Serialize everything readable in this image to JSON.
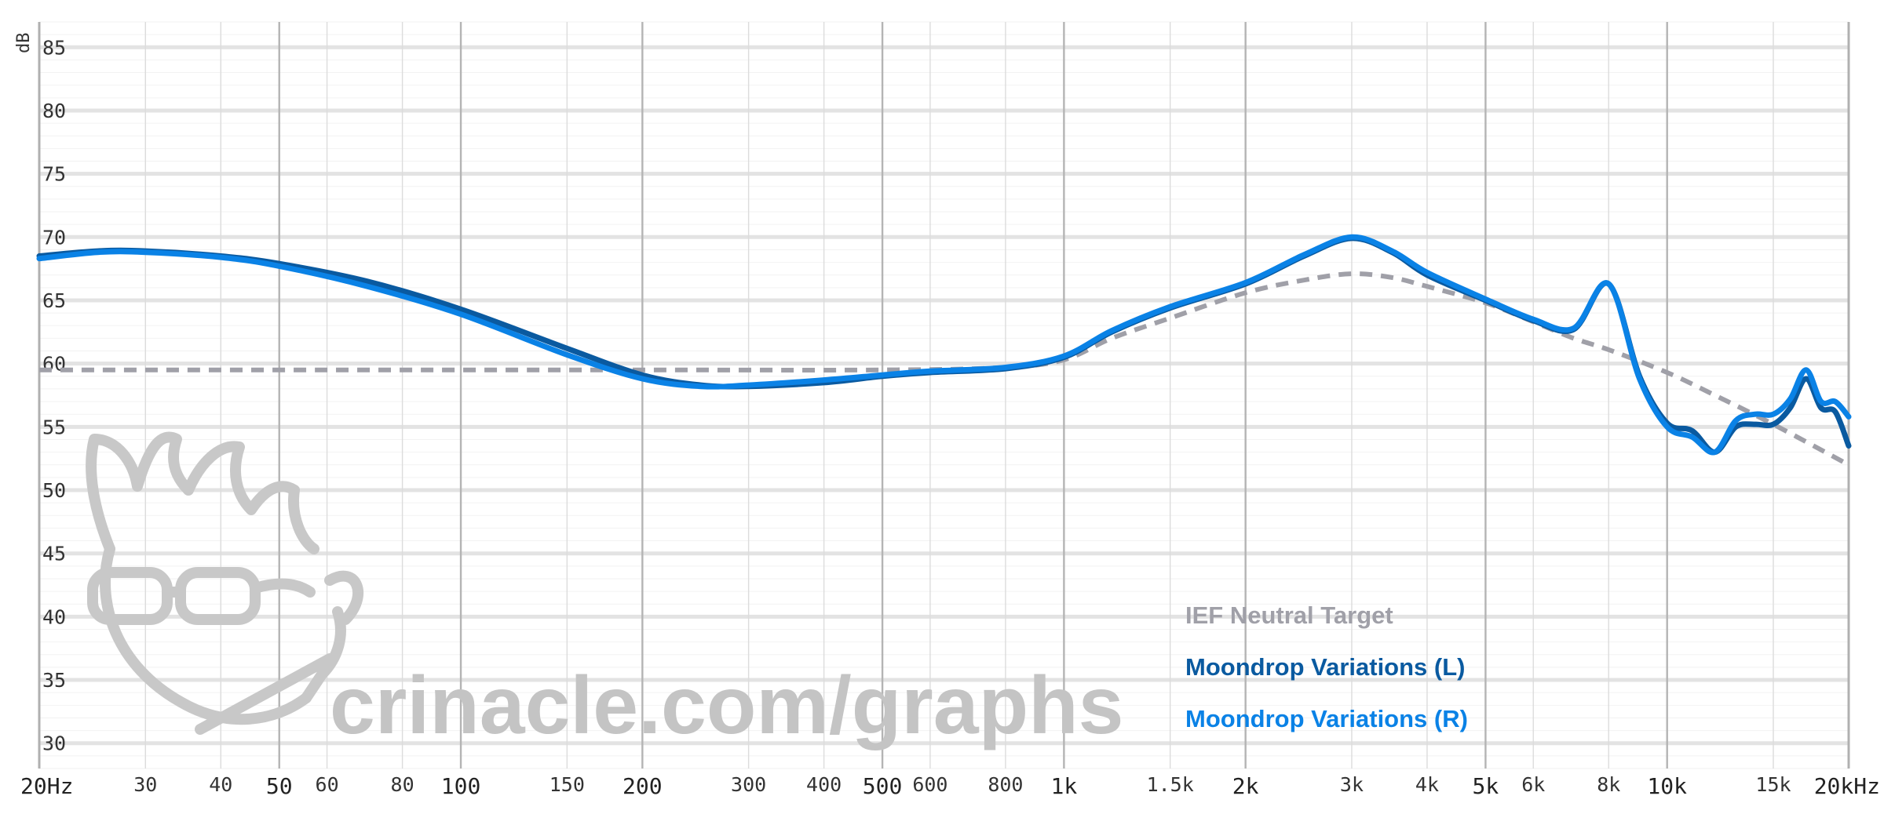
{
  "chart_data": {
    "type": "line",
    "x_scale": "log",
    "xlim": [
      20,
      20000
    ],
    "ylim": [
      28,
      87
    ],
    "y_unit_label": "dB",
    "y_ticks": [
      30,
      35,
      40,
      45,
      50,
      55,
      60,
      65,
      70,
      75,
      80,
      85
    ],
    "x_ticks": [
      {
        "value": 20,
        "label": "20Hz",
        "major": true
      },
      {
        "value": 30,
        "label": "30",
        "major": false
      },
      {
        "value": 40,
        "label": "40",
        "major": false
      },
      {
        "value": 50,
        "label": "50",
        "major": true
      },
      {
        "value": 60,
        "label": "60",
        "major": false
      },
      {
        "value": 80,
        "label": "80",
        "major": false
      },
      {
        "value": 100,
        "label": "100",
        "major": true
      },
      {
        "value": 150,
        "label": "150",
        "major": false
      },
      {
        "value": 200,
        "label": "200",
        "major": true
      },
      {
        "value": 300,
        "label": "300",
        "major": false
      },
      {
        "value": 400,
        "label": "400",
        "major": false
      },
      {
        "value": 500,
        "label": "500",
        "major": true
      },
      {
        "value": 600,
        "label": "600",
        "major": false
      },
      {
        "value": 800,
        "label": "800",
        "major": false
      },
      {
        "value": 1000,
        "label": "1k",
        "major": true
      },
      {
        "value": 1500,
        "label": "1.5k",
        "major": false
      },
      {
        "value": 2000,
        "label": "2k",
        "major": true
      },
      {
        "value": 3000,
        "label": "3k",
        "major": false
      },
      {
        "value": 4000,
        "label": "4k",
        "major": false
      },
      {
        "value": 5000,
        "label": "5k",
        "major": true
      },
      {
        "value": 6000,
        "label": "6k",
        "major": false
      },
      {
        "value": 8000,
        "label": "8k",
        "major": false
      },
      {
        "value": 10000,
        "label": "10k",
        "major": true
      },
      {
        "value": 15000,
        "label": "15k",
        "major": false
      },
      {
        "value": 20000,
        "label": "20kHz",
        "major": true
      }
    ],
    "series": [
      {
        "name": "IEF Neutral Target",
        "color": "#a0a0a8",
        "dashed": true,
        "points": [
          [
            20,
            59.5
          ],
          [
            100,
            59.5
          ],
          [
            200,
            59.5
          ],
          [
            500,
            59.5
          ],
          [
            800,
            59.7
          ],
          [
            1000,
            60.3
          ],
          [
            1200,
            62
          ],
          [
            1500,
            63.6
          ],
          [
            2000,
            65.6
          ],
          [
            2500,
            66.6
          ],
          [
            3000,
            67.1
          ],
          [
            3500,
            66.8
          ],
          [
            4000,
            66.1
          ],
          [
            5000,
            64.8
          ],
          [
            6000,
            63.3
          ],
          [
            7000,
            62
          ],
          [
            8000,
            61.1
          ],
          [
            10000,
            59.3
          ],
          [
            12000,
            57.5
          ],
          [
            15000,
            55.2
          ],
          [
            20000,
            52
          ]
        ]
      },
      {
        "name": "Moondrop Variations (L)",
        "color": "#0a5aa0",
        "dashed": false,
        "points": [
          [
            20,
            68.5
          ],
          [
            25,
            68.9
          ],
          [
            30,
            68.9
          ],
          [
            40,
            68.5
          ],
          [
            50,
            67.9
          ],
          [
            70,
            66.5
          ],
          [
            100,
            64.3
          ],
          [
            150,
            61.2
          ],
          [
            200,
            59.1
          ],
          [
            250,
            58.3
          ],
          [
            300,
            58.2
          ],
          [
            400,
            58.5
          ],
          [
            500,
            59
          ],
          [
            600,
            59.3
          ],
          [
            800,
            59.6
          ],
          [
            1000,
            60.5
          ],
          [
            1200,
            62.5
          ],
          [
            1500,
            64.4
          ],
          [
            2000,
            66.3
          ],
          [
            2500,
            68.5
          ],
          [
            3000,
            69.9
          ],
          [
            3500,
            68.8
          ],
          [
            4000,
            67
          ],
          [
            5000,
            65
          ],
          [
            6000,
            63.4
          ],
          [
            7000,
            62.7
          ],
          [
            8000,
            66.3
          ],
          [
            9000,
            59
          ],
          [
            10000,
            55.3
          ],
          [
            11000,
            54.7
          ],
          [
            12000,
            53
          ],
          [
            13000,
            55
          ],
          [
            14000,
            55.2
          ],
          [
            15000,
            55.2
          ],
          [
            16000,
            56.5
          ],
          [
            17000,
            58.8
          ],
          [
            18000,
            56.5
          ],
          [
            19000,
            56.2
          ],
          [
            20000,
            53.5
          ]
        ]
      },
      {
        "name": "Moondrop Variations (R)",
        "color": "#0a82e6",
        "dashed": false,
        "points": [
          [
            20,
            68.3
          ],
          [
            25,
            68.8
          ],
          [
            30,
            68.8
          ],
          [
            40,
            68.4
          ],
          [
            50,
            67.7
          ],
          [
            70,
            66.1
          ],
          [
            100,
            63.9
          ],
          [
            150,
            60.7
          ],
          [
            200,
            58.8
          ],
          [
            250,
            58.2
          ],
          [
            300,
            58.3
          ],
          [
            400,
            58.7
          ],
          [
            500,
            59.1
          ],
          [
            600,
            59.4
          ],
          [
            800,
            59.7
          ],
          [
            1000,
            60.6
          ],
          [
            1200,
            62.6
          ],
          [
            1500,
            64.5
          ],
          [
            2000,
            66.4
          ],
          [
            2500,
            68.6
          ],
          [
            3000,
            70
          ],
          [
            3500,
            68.9
          ],
          [
            4000,
            67.2
          ],
          [
            5000,
            65.1
          ],
          [
            6000,
            63.5
          ],
          [
            7000,
            62.8
          ],
          [
            8000,
            66.3
          ],
          [
            9000,
            58.8
          ],
          [
            10000,
            55
          ],
          [
            11000,
            54.2
          ],
          [
            12000,
            53
          ],
          [
            13000,
            55.5
          ],
          [
            14000,
            56
          ],
          [
            15000,
            56
          ],
          [
            16000,
            57.2
          ],
          [
            17000,
            59.5
          ],
          [
            18000,
            57
          ],
          [
            19000,
            57
          ],
          [
            20000,
            55.8
          ]
        ]
      }
    ],
    "legend": {
      "placement": "bottom-right",
      "entries": [
        {
          "label": "IEF Neutral Target",
          "color": "#a0a0a8"
        },
        {
          "label": "Moondrop Variations (L)",
          "color": "#0a5aa0"
        },
        {
          "label": "Moondrop Variations (R)",
          "color": "#0a82e6"
        }
      ]
    },
    "watermark": {
      "text": "crinacle.com/graphs"
    },
    "grid": true
  }
}
